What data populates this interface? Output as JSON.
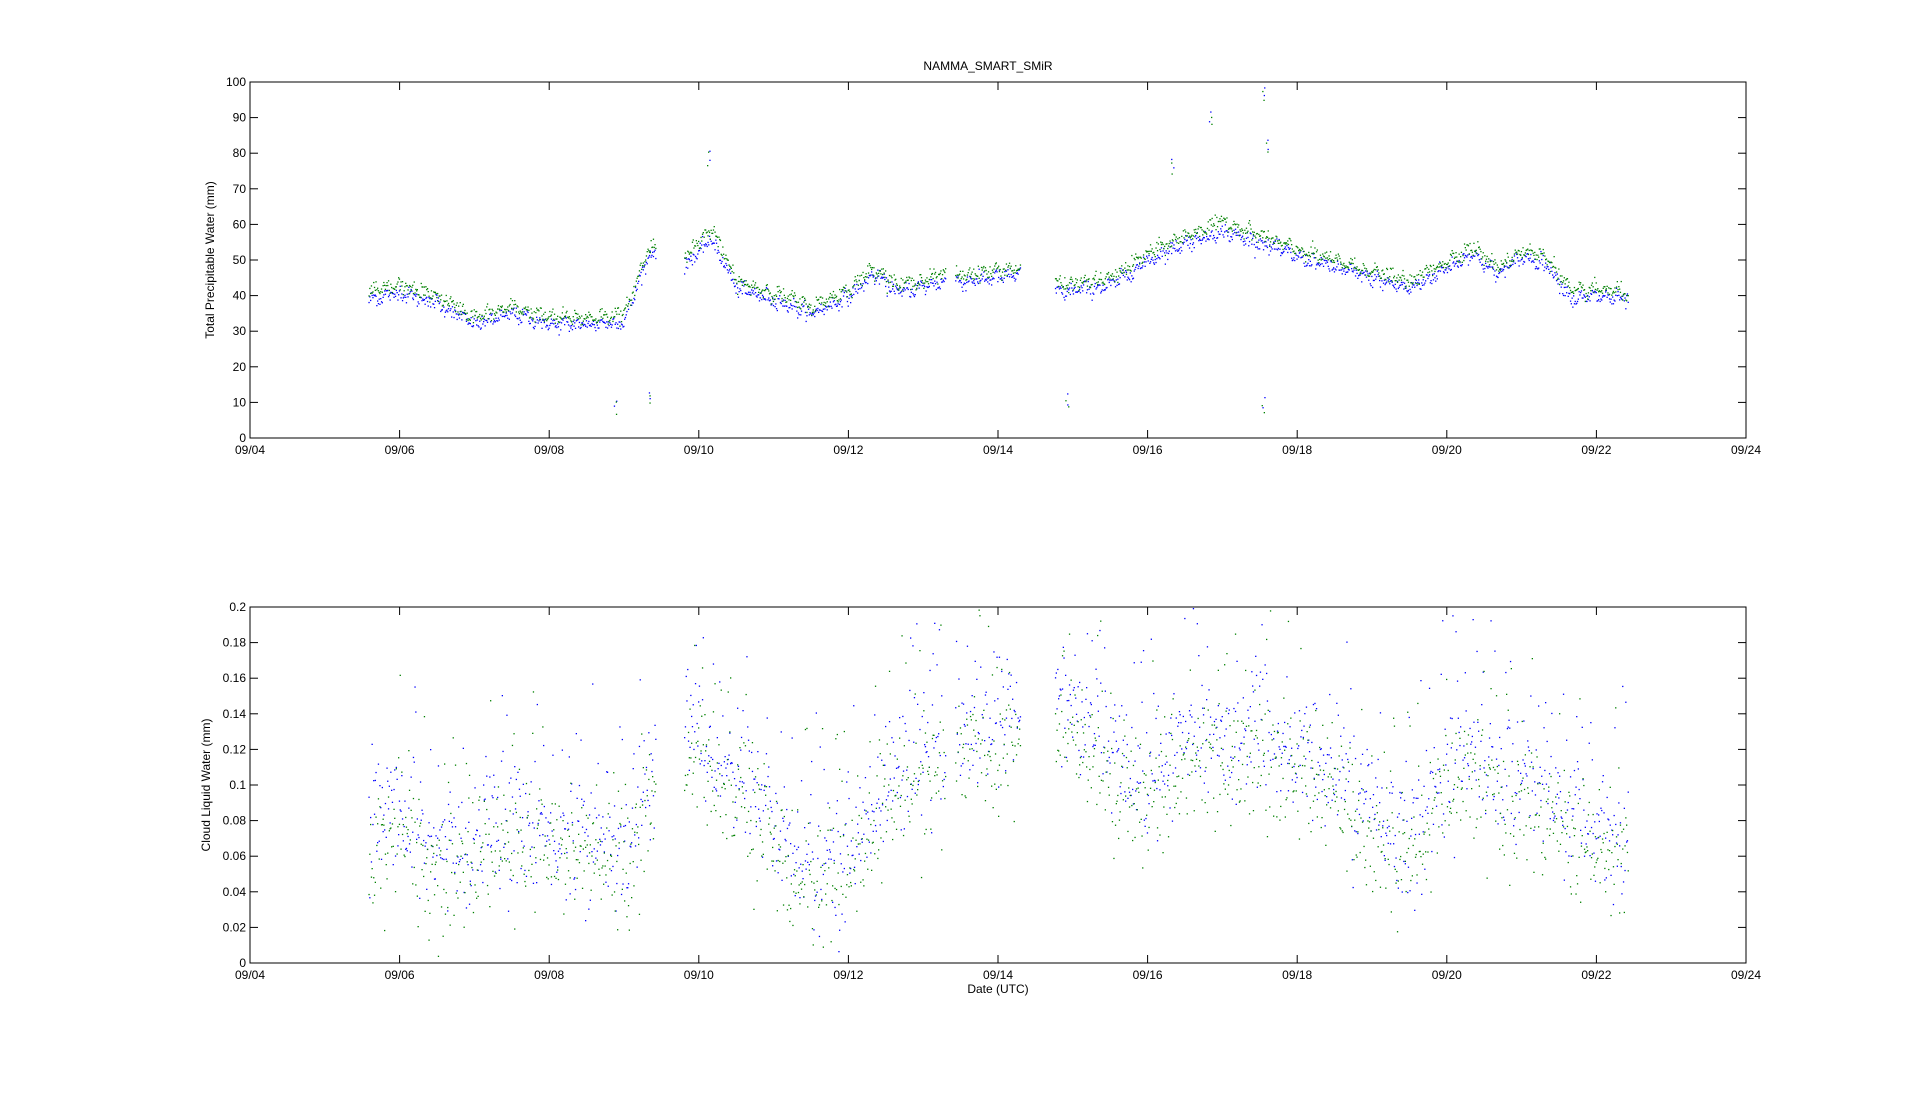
{
  "title": "NAMMA_SMART_SMiR",
  "colors": {
    "series_a": "#0000ff",
    "series_b": "#008000",
    "axes": "#000000",
    "background": "#ffffff"
  },
  "chart_data": [
    {
      "type": "scatter",
      "title": "NAMMA_SMART_SMiR",
      "xlabel": "",
      "ylabel": "Total Precipitable Water (mm)",
      "xlim": [
        "2006-09-04",
        "2006-09-24"
      ],
      "ylim": [
        0,
        100
      ],
      "x_ticks": [
        "09/04",
        "09/06",
        "09/08",
        "09/10",
        "09/12",
        "09/14",
        "09/16",
        "09/18",
        "09/20",
        "09/22",
        "09/24"
      ],
      "y_ticks": [
        "0",
        "10",
        "20",
        "30",
        "40",
        "50",
        "60",
        "70",
        "80",
        "90",
        "100"
      ],
      "grid": false,
      "data_span": [
        "2006-09-05 14:00",
        "2006-09-22 10:00"
      ],
      "gaps": [
        [
          "2006-09-09 10:00",
          "2006-09-09 19:00"
        ],
        [
          "2006-09-13 07:00",
          "2006-09-13 10:00"
        ],
        [
          "2006-09-14 07:00",
          "2006-09-14 18:00"
        ]
      ],
      "trend": {
        "x": [
          "2006-09-05 14:00",
          "2006-09-06 00:00",
          "2006-09-06 12:00",
          "2006-09-07 00:00",
          "2006-09-07 12:00",
          "2006-09-08 00:00",
          "2006-09-08 12:00",
          "2006-09-09 00:00",
          "2006-09-09 08:00",
          "2006-09-09 20:00",
          "2006-09-10 04:00",
          "2006-09-10 12:00",
          "2006-09-11 00:00",
          "2006-09-11 12:00",
          "2006-09-12 00:00",
          "2006-09-12 08:00",
          "2006-09-12 16:00",
          "2006-09-13 06:00",
          "2006-09-13 12:00",
          "2006-09-14 06:00",
          "2006-09-14 20:00",
          "2006-09-15 12:00",
          "2006-09-16 00:00",
          "2006-09-16 12:00",
          "2006-09-17 00:00",
          "2006-09-17 12:00",
          "2006-09-18 00:00",
          "2006-09-18 12:00",
          "2006-09-19 00:00",
          "2006-09-19 12:00",
          "2006-09-20 00:00",
          "2006-09-20 08:00",
          "2006-09-20 16:00",
          "2006-09-21 00:00",
          "2006-09-21 08:00",
          "2006-09-21 16:00",
          "2006-09-22 00:00",
          "2006-09-22 10:00"
        ],
        "blue": [
          39,
          41,
          38,
          32,
          35,
          32,
          32,
          33,
          52,
          49,
          56,
          42,
          39,
          35,
          40,
          46,
          41,
          44,
          44,
          46,
          41,
          43,
          50,
          55,
          58,
          55,
          51,
          48,
          45,
          42,
          48,
          52,
          46,
          51,
          49,
          39,
          40,
          39
        ],
        "green": [
          41,
          43,
          40,
          34,
          37,
          34,
          34,
          35,
          54,
          52,
          59,
          44,
          41,
          37,
          42,
          48,
          43,
          46,
          46,
          48,
          43,
          45,
          52,
          57,
          61,
          57,
          53,
          50,
          47,
          44,
          50,
          54,
          48,
          53,
          51,
          41,
          42,
          41
        ]
      },
      "outliers": [
        {
          "x": "2006-09-10 03:00",
          "y": 81
        },
        {
          "x": "2006-09-16 20:00",
          "y": 92
        },
        {
          "x": "2006-09-17 13:00",
          "y": 99
        },
        {
          "x": "2006-09-17 14:00",
          "y": 84
        },
        {
          "x": "2006-09-17 13:00",
          "y": 11
        },
        {
          "x": "2006-09-08 21:00",
          "y": 11
        },
        {
          "x": "2006-09-14 22:00",
          "y": 12
        },
        {
          "x": "2006-09-09 08:00",
          "y": 13
        },
        {
          "x": "2006-09-16 08:00",
          "y": 78
        }
      ]
    },
    {
      "type": "scatter",
      "title": "",
      "xlabel": "Date (UTC)",
      "ylabel": "Cloud Liquid Water (mm)",
      "xlim": [
        "2006-09-04",
        "2006-09-24"
      ],
      "ylim": [
        0,
        0.2
      ],
      "x_ticks": [
        "09/04",
        "09/06",
        "09/08",
        "09/10",
        "09/12",
        "09/14",
        "09/16",
        "09/18",
        "09/20",
        "09/22",
        "09/24"
      ],
      "y_ticks": [
        "0",
        "0.02",
        "0.04",
        "0.06",
        "0.08",
        "0.1",
        "0.12",
        "0.14",
        "0.16",
        "0.18",
        "0.2"
      ],
      "grid": false,
      "data_span": [
        "2006-09-05 14:00",
        "2006-09-22 10:00"
      ],
      "gaps": [
        [
          "2006-09-09 10:00",
          "2006-09-09 19:00"
        ],
        [
          "2006-09-13 07:00",
          "2006-09-13 10:00"
        ],
        [
          "2006-09-14 07:00",
          "2006-09-14 18:00"
        ]
      ],
      "trend": {
        "x": [
          "2006-09-05 14:00",
          "2006-09-06 00:00",
          "2006-09-06 12:00",
          "2006-09-07 00:00",
          "2006-09-07 12:00",
          "2006-09-08 00:00",
          "2006-09-08 12:00",
          "2006-09-09 00:00",
          "2006-09-09 08:00",
          "2006-09-09 20:00",
          "2006-09-10 04:00",
          "2006-09-10 12:00",
          "2006-09-11 00:00",
          "2006-09-11 12:00",
          "2006-09-12 00:00",
          "2006-09-12 08:00",
          "2006-09-12 16:00",
          "2006-09-13 06:00",
          "2006-09-13 12:00",
          "2006-09-14 06:00",
          "2006-09-14 20:00",
          "2006-09-15 12:00",
          "2006-09-16 00:00",
          "2006-09-16 12:00",
          "2006-09-17 00:00",
          "2006-09-17 12:00",
          "2006-09-18 00:00",
          "2006-09-18 12:00",
          "2006-09-19 00:00",
          "2006-09-19 12:00",
          "2006-09-20 00:00",
          "2006-09-20 08:00",
          "2006-09-20 16:00",
          "2006-09-21 00:00",
          "2006-09-21 08:00",
          "2006-09-21 16:00",
          "2006-09-22 00:00",
          "2006-09-22 10:00"
        ],
        "blue": [
          0.075,
          0.085,
          0.06,
          0.07,
          0.078,
          0.072,
          0.07,
          0.068,
          0.1,
          0.14,
          0.12,
          0.105,
          0.08,
          0.05,
          0.065,
          0.09,
          0.11,
          0.125,
          0.13,
          0.14,
          0.15,
          0.12,
          0.1,
          0.13,
          0.125,
          0.13,
          0.115,
          0.11,
          0.085,
          0.07,
          0.11,
          0.125,
          0.1,
          0.105,
          0.1,
          0.085,
          0.075,
          0.07
        ],
        "green": [
          0.065,
          0.075,
          0.05,
          0.06,
          0.07,
          0.062,
          0.06,
          0.058,
          0.09,
          0.125,
          0.105,
          0.09,
          0.07,
          0.04,
          0.055,
          0.078,
          0.095,
          0.11,
          0.115,
          0.125,
          0.135,
          0.105,
          0.085,
          0.115,
          0.11,
          0.115,
          0.1,
          0.095,
          0.072,
          0.06,
          0.095,
          0.11,
          0.088,
          0.092,
          0.088,
          0.072,
          0.062,
          0.058
        ]
      },
      "spread": 0.03
    }
  ]
}
